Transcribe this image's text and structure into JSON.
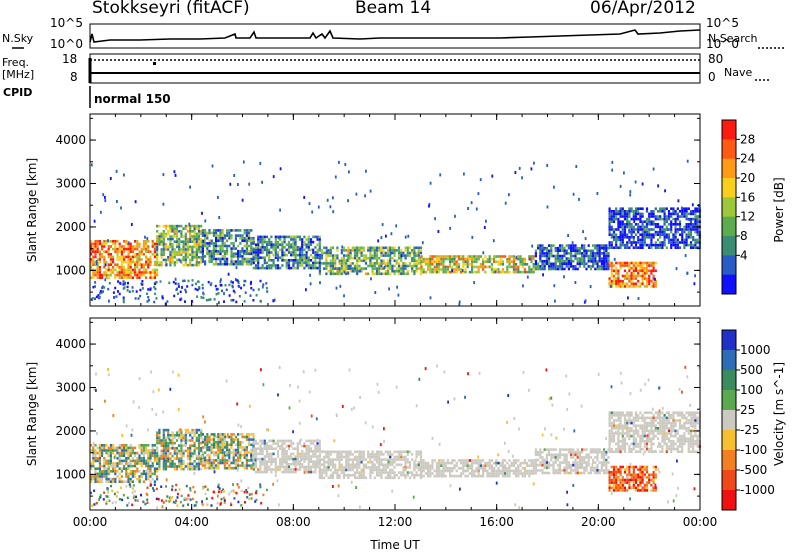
{
  "header": {
    "station": "Stokkseyri (fitACF)",
    "beam": "Beam 14",
    "date": "06/Apr/2012"
  },
  "status_panels": {
    "nsky_label": "N.Sky",
    "nsky_ticks": [
      "10^5",
      "10^0"
    ],
    "nsearch_label": "N.Search",
    "nsearch_ticks": [
      "10^5",
      "10^0"
    ],
    "freq_label": "Freq.",
    "freq_unit": "[MHz]",
    "freq_ticks": [
      "18",
      "8"
    ],
    "nave_label": "Nave",
    "nave_ticks": [
      "80",
      "0"
    ],
    "cpid_label": "CPID",
    "cpid_value": "normal 150"
  },
  "colorbars": {
    "power": {
      "title": "Power [dB]",
      "ticks": [
        "28",
        "24",
        "20",
        "16",
        "12",
        "8",
        "4"
      ],
      "colors": [
        "#ff1a10",
        "#ff5a12",
        "#ff9a14",
        "#f8d01c",
        "#9cc83a",
        "#5aac4c",
        "#3a8c72",
        "#2a5cc8",
        "#1010ff"
      ]
    },
    "velocity": {
      "title": "Velocity [m s^-1]",
      "ticks": [
        "1000",
        "500",
        "100",
        "25",
        "-25",
        "-100",
        "-500",
        "-1000"
      ],
      "colors": [
        "#2030c8",
        "#2c6cb8",
        "#3a8c60",
        "#5aa850",
        "#cccac0",
        "#f8c030",
        "#f28020",
        "#f04818",
        "#f01010"
      ]
    }
  },
  "chart_data": [
    {
      "type": "heatmap",
      "title": "",
      "xlabel": "Time UT",
      "ylabel": "Slant Range [km]",
      "x_ticks": [
        "00:00",
        "04:00",
        "08:00",
        "12:00",
        "16:00",
        "20:00",
        "00:00"
      ],
      "y_ticks": [
        "1000",
        "2000",
        "3000",
        "4000"
      ],
      "ylim": [
        180,
        4600
      ],
      "xlim_hours": [
        0,
        24
      ],
      "colorbar": "Power [dB]",
      "echo_bands": [
        {
          "t0": 0.0,
          "t1": 2.6,
          "r0": 850,
          "r1": 1700,
          "level": 0.75
        },
        {
          "t0": 2.6,
          "t1": 4.4,
          "r0": 1100,
          "r1": 2050,
          "level": 0.45
        },
        {
          "t0": 4.4,
          "t1": 6.4,
          "r0": 1150,
          "r1": 1950,
          "level": 0.3
        },
        {
          "t0": 6.4,
          "t1": 9.0,
          "r0": 1050,
          "r1": 1800,
          "level": 0.25
        },
        {
          "t0": 9.0,
          "t1": 13.0,
          "r0": 950,
          "r1": 1550,
          "level": 0.4
        },
        {
          "t0": 13.0,
          "t1": 17.5,
          "r0": 950,
          "r1": 1350,
          "level": 0.55
        },
        {
          "t0": 17.5,
          "t1": 20.4,
          "r0": 1050,
          "r1": 1600,
          "level": 0.15
        },
        {
          "t0": 20.4,
          "t1": 22.3,
          "r0": 650,
          "r1": 1200,
          "level": 0.8
        },
        {
          "t0": 20.4,
          "t1": 24.0,
          "r0": 1500,
          "r1": 2450,
          "level": 0.1
        }
      ]
    },
    {
      "type": "heatmap",
      "title": "",
      "xlabel": "Time UT",
      "ylabel": "Slant Range [km]",
      "x_ticks": [
        "00:00",
        "04:00",
        "08:00",
        "12:00",
        "16:00",
        "20:00",
        "00:00"
      ],
      "y_ticks": [
        "1000",
        "2000",
        "3000",
        "4000"
      ],
      "ylim": [
        180,
        4600
      ],
      "xlim_hours": [
        0,
        24
      ],
      "colorbar": "Velocity [m s^-1]",
      "echo_bands": [
        {
          "t0": 0.0,
          "t1": 2.6,
          "r0": 850,
          "r1": 1700,
          "class": "mixed"
        },
        {
          "t0": 2.6,
          "t1": 4.4,
          "r0": 1100,
          "r1": 2050,
          "class": "mixed"
        },
        {
          "t0": 4.4,
          "t1": 6.4,
          "r0": 1150,
          "r1": 1950,
          "class": "mixed"
        },
        {
          "t0": 6.4,
          "t1": 9.0,
          "r0": 1050,
          "r1": 1800,
          "class": "ground"
        },
        {
          "t0": 9.0,
          "t1": 13.0,
          "r0": 950,
          "r1": 1550,
          "class": "ground"
        },
        {
          "t0": 13.0,
          "t1": 17.5,
          "r0": 950,
          "r1": 1350,
          "class": "ground"
        },
        {
          "t0": 17.5,
          "t1": 20.4,
          "r0": 1050,
          "r1": 1600,
          "class": "ground"
        },
        {
          "t0": 20.4,
          "t1": 22.3,
          "r0": 650,
          "r1": 1200,
          "class": "away"
        },
        {
          "t0": 20.4,
          "t1": 24.0,
          "r0": 1500,
          "r1": 2450,
          "class": "ground"
        }
      ]
    }
  ]
}
